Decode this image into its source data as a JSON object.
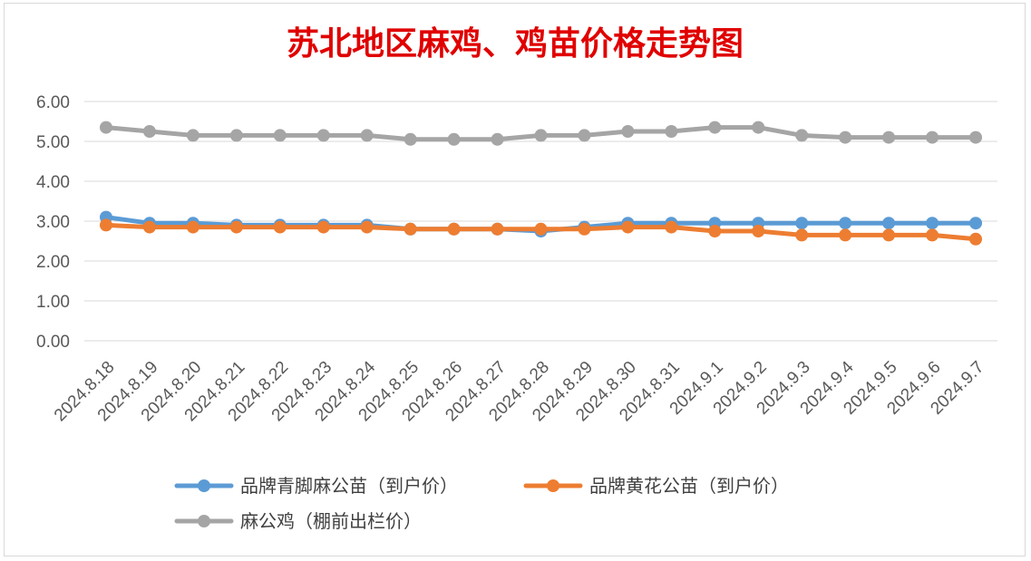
{
  "chart_data": {
    "type": "line",
    "title": "苏北地区麻鸡、鸡苗价格走势图",
    "xlabel": "",
    "ylabel": "",
    "ylim": [
      0,
      6
    ],
    "yticks": [
      "0.00",
      "1.00",
      "2.00",
      "3.00",
      "4.00",
      "5.00",
      "6.00"
    ],
    "grid": true,
    "legend_position": "bottom",
    "categories": [
      "2024.8.18",
      "2024.8.19",
      "2024.8.20",
      "2024.8.21",
      "2024.8.22",
      "2024.8.23",
      "2024.8.24",
      "2024.8.25",
      "2024.8.26",
      "2024.8.27",
      "2024.8.28",
      "2024.8.29",
      "2024.8.30",
      "2024.8.31",
      "2024.9.1",
      "2024.9.2",
      "2024.9.3",
      "2024.9.4",
      "2024.9.5",
      "2024.9.6",
      "2024.9.7"
    ],
    "series": [
      {
        "name": "品牌青脚麻公苗（到户价）",
        "color": "#5b9bd5",
        "values": [
          3.1,
          2.95,
          2.95,
          2.9,
          2.9,
          2.9,
          2.9,
          2.8,
          2.8,
          2.8,
          2.75,
          2.85,
          2.95,
          2.95,
          2.95,
          2.95,
          2.95,
          2.95,
          2.95,
          2.95,
          2.95
        ]
      },
      {
        "name": "品牌黄花公苗（到户价）",
        "color": "#ed7d31",
        "values": [
          2.9,
          2.85,
          2.85,
          2.85,
          2.85,
          2.85,
          2.85,
          2.8,
          2.8,
          2.8,
          2.8,
          2.8,
          2.85,
          2.85,
          2.75,
          2.75,
          2.65,
          2.65,
          2.65,
          2.65,
          2.55
        ]
      },
      {
        "name": "麻公鸡（棚前出栏价）",
        "color": "#a5a5a5",
        "values": [
          5.35,
          5.25,
          5.15,
          5.15,
          5.15,
          5.15,
          5.15,
          5.05,
          5.05,
          5.05,
          5.15,
          5.15,
          5.25,
          5.25,
          5.35,
          5.35,
          5.15,
          5.1,
          5.1,
          5.1,
          5.1
        ]
      }
    ]
  }
}
